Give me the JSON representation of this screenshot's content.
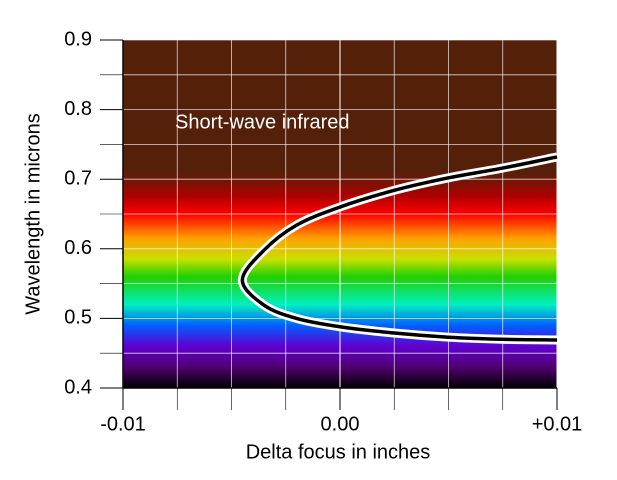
{
  "chart_data": {
    "type": "line",
    "annotation": "Short-wave infrared",
    "x_label": "Delta focus in inches",
    "y_label": "Wavelength in microns",
    "x": [
      0.01,
      0.0075,
      0.005,
      0.0025,
      0,
      -0.002,
      -0.0035,
      -0.0045,
      -0.0035,
      -0.002,
      0,
      0.0025,
      0.005,
      0.0075,
      0.01
    ],
    "values": [
      0.732,
      0.716,
      0.702,
      0.684,
      0.66,
      0.634,
      0.598,
      0.555,
      0.519,
      0.5,
      0.488,
      0.479,
      0.473,
      0.47,
      0.469
    ],
    "color": "#000000",
    "xlim": [
      -0.01,
      0.01
    ],
    "ylim": [
      0.4,
      0.9
    ],
    "xticks": [
      {
        "value": -0.01,
        "label": "-0.01"
      },
      {
        "value": 0,
        "label": "0.00"
      },
      {
        "value": 0.01,
        "label": "+0.01"
      }
    ],
    "xminor": [
      -0.0075,
      -0.005,
      -0.0025,
      0.0025,
      0.005,
      0.0075
    ],
    "yticks": [
      0.4,
      0.5,
      0.6,
      0.7,
      0.8,
      0.9
    ],
    "yminor": [
      0.45,
      0.55,
      0.65,
      0.75,
      0.85
    ],
    "grid": true
  }
}
